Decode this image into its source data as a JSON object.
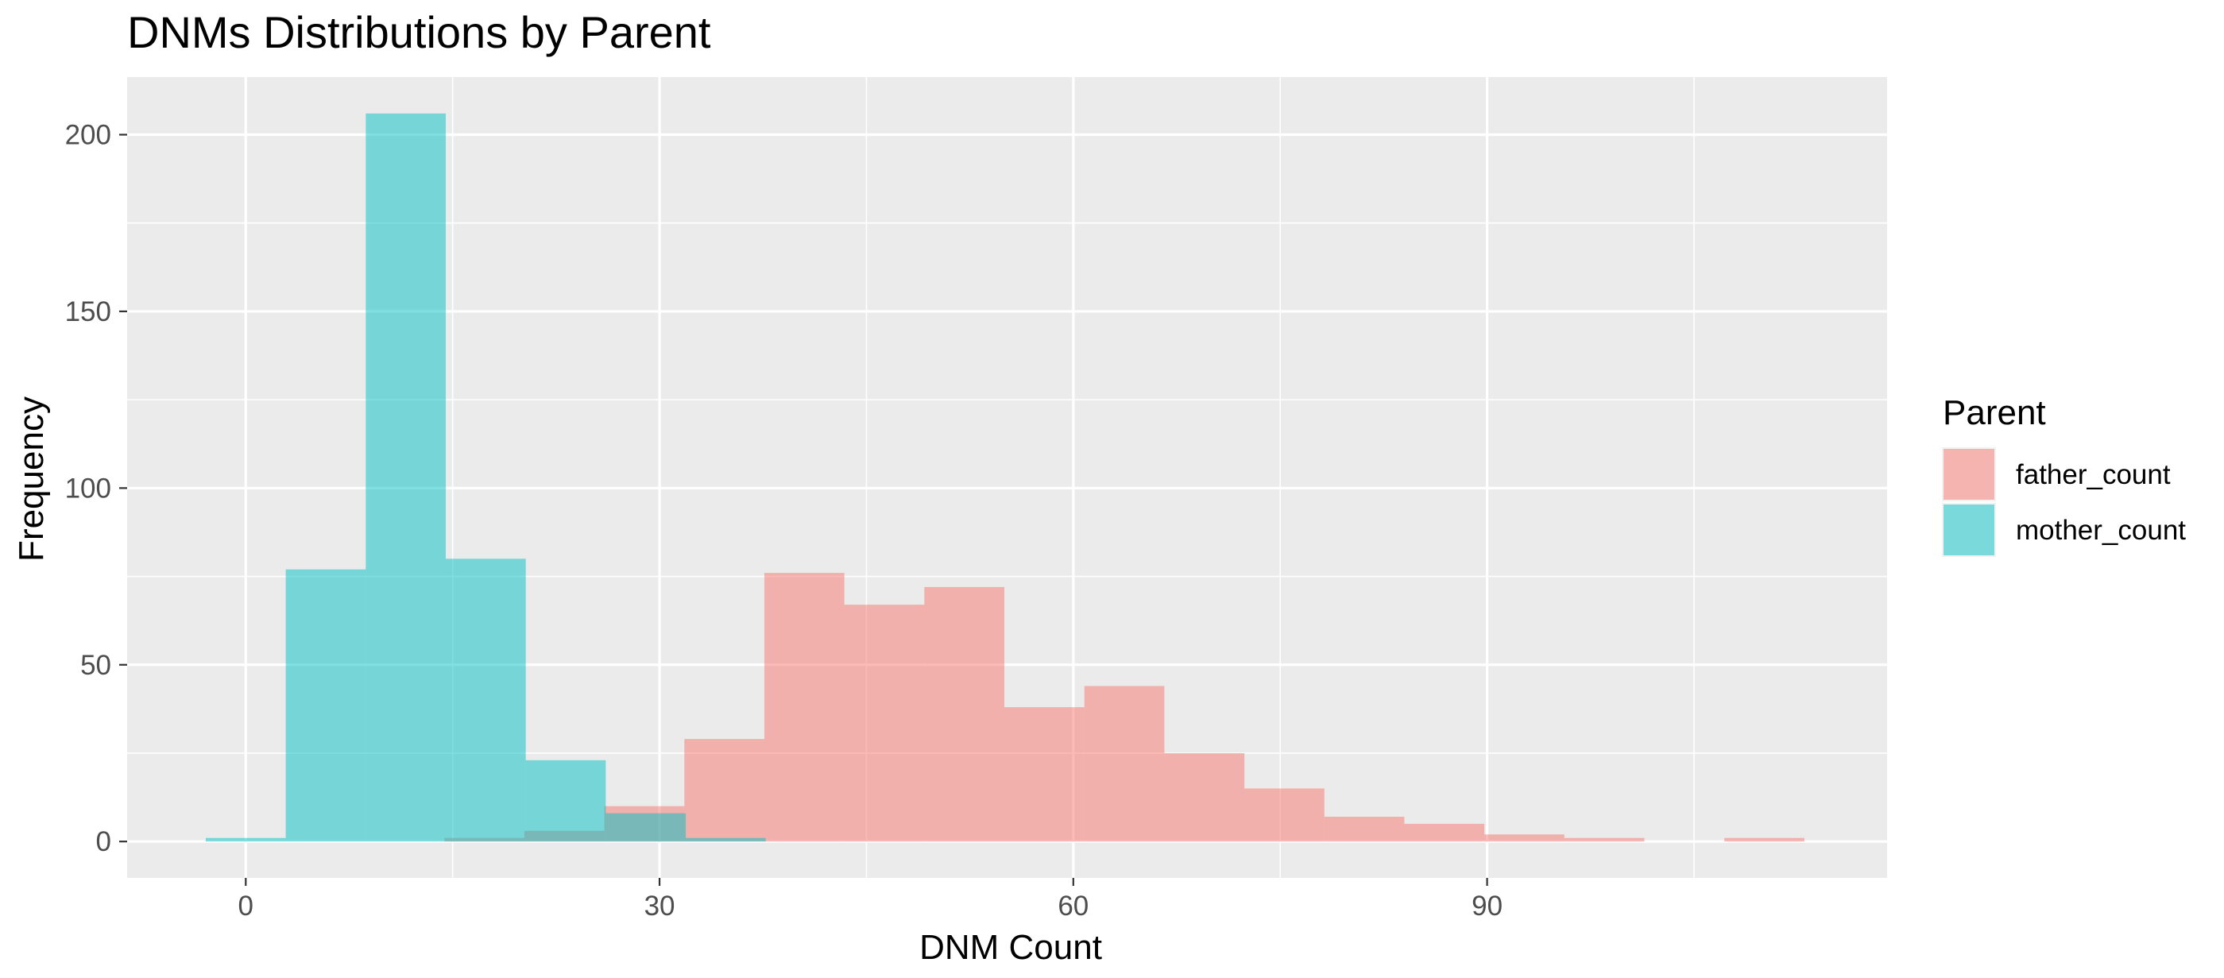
{
  "chart_data": {
    "type": "histogram",
    "title": "DNMs Distributions by Parent",
    "xlabel": "DNM Count",
    "ylabel": "Frequency",
    "xlim": [
      -8.6,
      119
    ],
    "ylim": [
      -10.3,
      216.3
    ],
    "x_ticks": [
      0,
      30,
      60,
      90
    ],
    "y_ticks": [
      0,
      50,
      100,
      150,
      200
    ],
    "grid": true,
    "legend": {
      "title": "Parent",
      "position": "right"
    },
    "bin_width": 5.8,
    "series": [
      {
        "name": "father_count",
        "color": "#F8766D",
        "bins": [
          {
            "x0": 14.4,
            "x1": 20.2,
            "count": 1
          },
          {
            "x0": 20.2,
            "x1": 26.0,
            "count": 3
          },
          {
            "x0": 26.0,
            "x1": 31.8,
            "count": 10
          },
          {
            "x0": 31.8,
            "x1": 37.6,
            "count": 29
          },
          {
            "x0": 37.6,
            "x1": 43.4,
            "count": 76
          },
          {
            "x0": 43.4,
            "x1": 49.2,
            "count": 67
          },
          {
            "x0": 49.2,
            "x1": 55.0,
            "count": 72
          },
          {
            "x0": 55.0,
            "x1": 60.8,
            "count": 38
          },
          {
            "x0": 60.8,
            "x1": 66.6,
            "count": 44
          },
          {
            "x0": 66.6,
            "x1": 72.4,
            "count": 25
          },
          {
            "x0": 72.4,
            "x1": 78.2,
            "count": 15
          },
          {
            "x0": 78.2,
            "x1": 84.0,
            "count": 7
          },
          {
            "x0": 84.0,
            "x1": 89.8,
            "count": 5
          },
          {
            "x0": 89.8,
            "x1": 95.6,
            "count": 2
          },
          {
            "x0": 95.6,
            "x1": 101.4,
            "count": 1
          },
          {
            "x0": 107.2,
            "x1": 113.0,
            "count": 1
          }
        ]
      },
      {
        "name": "mother_count",
        "color": "#00BFC4",
        "bins": [
          {
            "x0": -2.9,
            "x1": 2.9,
            "count": 1
          },
          {
            "x0": 2.9,
            "x1": 8.7,
            "count": 77
          },
          {
            "x0": 8.7,
            "x1": 14.5,
            "count": 206
          },
          {
            "x0": 14.5,
            "x1": 20.3,
            "count": 80
          },
          {
            "x0": 20.3,
            "x1": 26.1,
            "count": 23
          },
          {
            "x0": 26.1,
            "x1": 31.9,
            "count": 8
          },
          {
            "x0": 31.9,
            "x1": 37.7,
            "count": 1
          }
        ]
      }
    ]
  }
}
